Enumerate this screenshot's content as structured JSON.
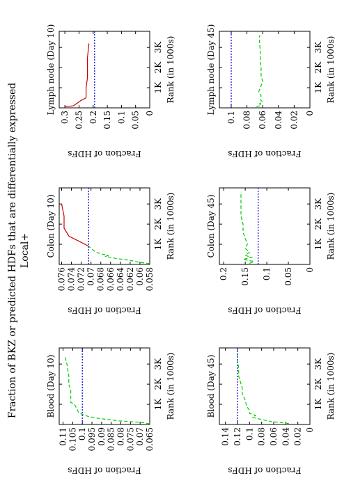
{
  "figure": {
    "title_line1": "Fraction of BKZ or predicted HDFs that are differentially expressed",
    "title_line2": "Local+"
  },
  "chart_data": [
    {
      "type": "line",
      "title": "Blood (Day 10)",
      "xlabel": "Rank (in 1000s)",
      "ylabel": "Fraction of HDFs",
      "x_tick_labels": [
        "1K",
        "2K",
        "3K"
      ],
      "y_tick_labels": [
        "0.065",
        "0.07",
        "0.075",
        "0.08",
        "0.085",
        "0.09",
        "0.095",
        "0.1",
        "0.105",
        "0.11"
      ],
      "xlim": [
        0,
        3800
      ],
      "ylim": [
        0.065,
        0.112
      ],
      "series": [
        {
          "color": "#00cc00",
          "dash": "dashed",
          "x": [
            30,
            100,
            180,
            260,
            320,
            400,
            500,
            600,
            800,
            1000,
            1100,
            1400,
            1700,
            2000,
            2400,
            3000,
            3400
          ],
          "y": [
            0.065,
            0.069,
            0.081,
            0.088,
            0.093,
            0.097,
            0.1,
            0.102,
            0.103,
            0.104,
            0.106,
            0.106,
            0.106,
            0.107,
            0.107,
            0.108,
            0.109
          ]
        },
        {
          "color": "#0000cc",
          "dash": "dotted",
          "x": [
            0,
            3800
          ],
          "y": [
            0.1,
            0.1
          ]
        }
      ]
    },
    {
      "type": "line",
      "title": "Colon (Day 10)",
      "xlabel": "Rank (in 1000s)",
      "ylabel": "Fraction of HDFs",
      "x_tick_labels": [
        "1K",
        "2K",
        "3K"
      ],
      "y_tick_labels": [
        "0.058",
        "0.06",
        "0.062",
        "0.064",
        "0.066",
        "0.068",
        "0.07",
        "0.072",
        "0.074",
        "0.076"
      ],
      "xlim": [
        0,
        3800
      ],
      "ylim": [
        0.058,
        0.0765
      ],
      "series": [
        {
          "color": "#00cc00",
          "dash": "dashed",
          "x": [
            40,
            100,
            200,
            300,
            400,
            450,
            500,
            600,
            700,
            800,
            900
          ],
          "y": [
            0.058,
            0.06,
            0.062,
            0.065,
            0.067,
            0.0665,
            0.0675,
            0.069,
            0.0695,
            0.07,
            0.0705
          ]
        },
        {
          "color": "#cc0000",
          "dash": "solid",
          "x": [
            900,
            1100,
            1400,
            1800,
            2400,
            3000
          ],
          "y": [
            0.0705,
            0.072,
            0.0745,
            0.0755,
            0.0755,
            0.076
          ]
        },
        {
          "color": "#0000cc",
          "dash": "dotted",
          "x": [
            0,
            3800
          ],
          "y": [
            0.0705,
            0.0705
          ]
        }
      ]
    },
    {
      "type": "line",
      "title": "Lymph node (Day 10)",
      "xlabel": "Rank (in 1000s)",
      "ylabel": "Fraction of HDFs",
      "x_tick_labels": [
        "1K",
        "2K",
        "3K"
      ],
      "y_tick_labels": [
        "0",
        "0.05",
        "0.1",
        "0.15",
        "0.2",
        "0.25",
        "0.3"
      ],
      "xlim": [
        0,
        3800
      ],
      "ylim": [
        0,
        0.32
      ],
      "series": [
        {
          "color": "#cc0000",
          "dash": "solid",
          "x": [
            60,
            100,
            200,
            350,
            500,
            700,
            1000,
            1500,
            1800,
            2000,
            2500,
            3200
          ],
          "y": [
            0.3,
            0.27,
            0.26,
            0.245,
            0.225,
            0.225,
            0.225,
            0.22,
            0.22,
            0.22,
            0.22,
            0.215
          ]
        },
        {
          "color": "#0000cc",
          "dash": "dotted",
          "x": [
            0,
            3800
          ],
          "y": [
            0.195,
            0.195
          ]
        }
      ]
    },
    {
      "type": "line",
      "title": "Blood (Day 45)",
      "xlabel": "Rank (in 1000s)",
      "ylabel": "Fraction of HDFs",
      "x_tick_labels": [
        "1K",
        "2K",
        "3K"
      ],
      "y_tick_labels": [
        "0",
        "0.02",
        "0.04",
        "0.06",
        "0.08",
        "0.1",
        "0.12",
        "0.14"
      ],
      "xlim": [
        0,
        3800
      ],
      "ylim": [
        0,
        0.15
      ],
      "series": [
        {
          "color": "#00cc00",
          "dash": "dashed",
          "x": [
            50,
            150,
            250,
            350,
            450,
            550,
            700,
            900,
            1200,
            1500,
            1800,
            2100,
            2400,
            2800,
            3200,
            3600
          ],
          "y": [
            0.035,
            0.065,
            0.08,
            0.095,
            0.09,
            0.1,
            0.1,
            0.105,
            0.107,
            0.112,
            0.112,
            0.115,
            0.118,
            0.118,
            0.12,
            0.12
          ]
        },
        {
          "color": "#0000cc",
          "dash": "dotted",
          "x": [
            0,
            3800
          ],
          "y": [
            0.12,
            0.12
          ]
        }
      ]
    },
    {
      "type": "line",
      "title": "Colon (Day 45)",
      "xlabel": "Rank (in 1000s)",
      "ylabel": "Fraction of HDFs",
      "x_tick_labels": [
        "1K",
        "2K",
        "3K"
      ],
      "y_tick_labels": [
        "0",
        "0.05",
        "0.1",
        "0.15",
        "0.2"
      ],
      "xlim": [
        0,
        3800
      ],
      "ylim": [
        0,
        0.21
      ],
      "series": [
        {
          "color": "#00cc00",
          "dash": "dashed",
          "x": [
            50,
            150,
            250,
            350,
            450,
            600,
            800,
            1000,
            1300,
            1600,
            2000,
            2400,
            2800,
            3200,
            3600
          ],
          "y": [
            0.14,
            0.13,
            0.155,
            0.135,
            0.15,
            0.14,
            0.15,
            0.145,
            0.15,
            0.155,
            0.155,
            0.16,
            0.16,
            0.16,
            0.16
          ]
        },
        {
          "color": "#0000cc",
          "dash": "dotted",
          "x": [
            0,
            3800
          ],
          "y": [
            0.12,
            0.12
          ]
        }
      ]
    },
    {
      "type": "line",
      "title": "Lymph node (Day 45)",
      "xlabel": "Rank (in 1000s)",
      "ylabel": "Fraction of HDFs",
      "x_tick_labels": [
        "1K",
        "2K",
        "3K"
      ],
      "y_tick_labels": [
        "0",
        "0.02",
        "0.04",
        "0.06",
        "0.08",
        "0.1"
      ],
      "xlim": [
        0,
        3800
      ],
      "ylim": [
        0,
        0.115
      ],
      "series": [
        {
          "color": "#00cc00",
          "dash": "dashed",
          "x": [
            60,
            120,
            200,
            300,
            400,
            600,
            800,
            1000,
            1300,
            1600,
            2000,
            2400,
            2800,
            3200,
            3600
          ],
          "y": [
            0.068,
            0.062,
            0.064,
            0.06,
            0.063,
            0.062,
            0.065,
            0.063,
            0.06,
            0.062,
            0.062,
            0.063,
            0.063,
            0.064,
            0.064
          ]
        },
        {
          "color": "#0000cc",
          "dash": "dotted",
          "x": [
            0,
            3800
          ],
          "y": [
            0.1,
            0.1
          ]
        }
      ]
    }
  ]
}
